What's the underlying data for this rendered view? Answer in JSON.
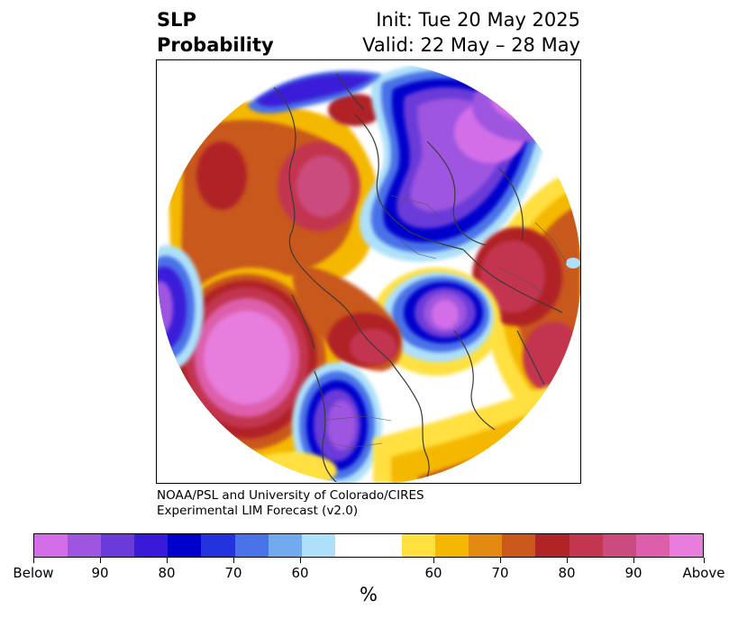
{
  "title": {
    "left": "SLP\nProbability",
    "left_line1": "SLP",
    "left_line2": "Probability",
    "right_line1": "Init: Tue 20 May 2025",
    "right_line2": "Valid: 22 May – 28 May"
  },
  "credit": {
    "line1": "NOAA/PSL and University of Colorado/CIRES",
    "line2": "Experimental LIM Forecast (v2.0)"
  },
  "colorbar": {
    "unit": "%",
    "colors": [
      "#d46ee8",
      "#9e55e0",
      "#6a3bd8",
      "#3a1ad8",
      "#0000cc",
      "#2233dd",
      "#4a72e8",
      "#72aaf0",
      "#aee0fa",
      "#ffffff",
      "#ffffff",
      "#ffe040",
      "#f5b800",
      "#e28a10",
      "#c9581a",
      "#b02425",
      "#c33650",
      "#cc4b7e",
      "#dd5fac",
      "#e77ddd"
    ],
    "tick_labels": [
      "Below",
      "90",
      "80",
      "70",
      "60",
      "60",
      "70",
      "80",
      "90",
      "Above"
    ]
  },
  "map": {
    "projection": "north polar stereographic",
    "field_colors": {
      "below_strong": "#d46ee8",
      "below_mid": "#3a1ad8",
      "below_weak": "#aee0fa",
      "neutral": "#ffffff",
      "above_weak": "#ffe040",
      "above_mid": "#c9581a",
      "above_strong": "#dd5fac"
    }
  }
}
